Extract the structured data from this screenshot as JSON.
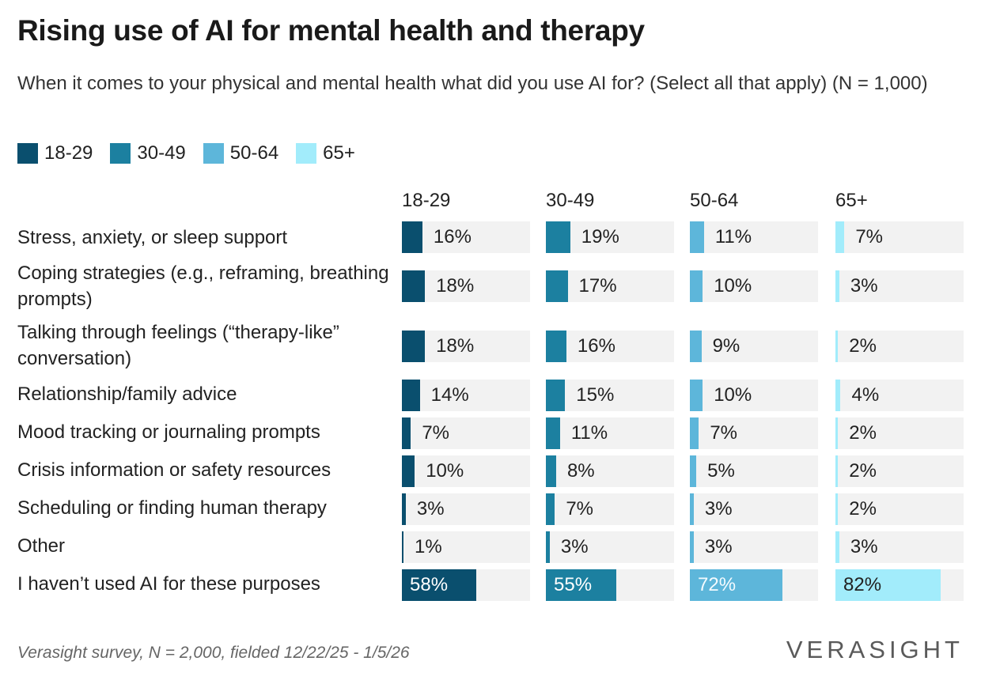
{
  "title": "Rising use of AI for mental health and therapy",
  "subtitle": "When it comes to your physical and mental health what did you use AI for? (Select all that apply) (N = 1,000)",
  "footer": "Verasight survey, N = 2,000, fielded 12/22/25 - 1/5/26",
  "logo": "VERASIGHT",
  "colors": {
    "18-29": "#0a4f6e",
    "30-49": "#1c80a0",
    "50-64": "#5db6da",
    "65+": "#a2ecfb",
    "track": "#f2f2f2"
  },
  "chart_data": {
    "type": "bar",
    "layout": "small-multiples-horizontal",
    "title": "Rising use of AI for mental health and therapy",
    "subtitle": "When it comes to your physical and mental health what did you use AI for? (Select all that apply) (N = 1,000)",
    "xlim": [
      0,
      100
    ],
    "unit": "%",
    "legend": [
      "18-29",
      "30-49",
      "50-64",
      "65+"
    ],
    "legend_position": "top-left",
    "categories": [
      "Stress, anxiety, or sleep support",
      "Coping strategies (e.g., reframing, breathing prompts)",
      "Talking through feelings (“therapy-like” conversation)",
      "Relationship/family advice",
      "Mood tracking or journaling prompts",
      "Crisis information or safety resources",
      "Scheduling or finding human therapy",
      "Other",
      "I haven’t used AI for these purposes"
    ],
    "series": [
      {
        "name": "18-29",
        "values": [
          16,
          18,
          18,
          14,
          7,
          10,
          3,
          1,
          58
        ]
      },
      {
        "name": "30-49",
        "values": [
          19,
          17,
          16,
          15,
          11,
          8,
          7,
          3,
          55
        ]
      },
      {
        "name": "50-64",
        "values": [
          11,
          10,
          9,
          10,
          7,
          5,
          3,
          3,
          72
        ]
      },
      {
        "name": "65+",
        "values": [
          7,
          3,
          2,
          4,
          2,
          2,
          2,
          3,
          82
        ]
      }
    ]
  }
}
